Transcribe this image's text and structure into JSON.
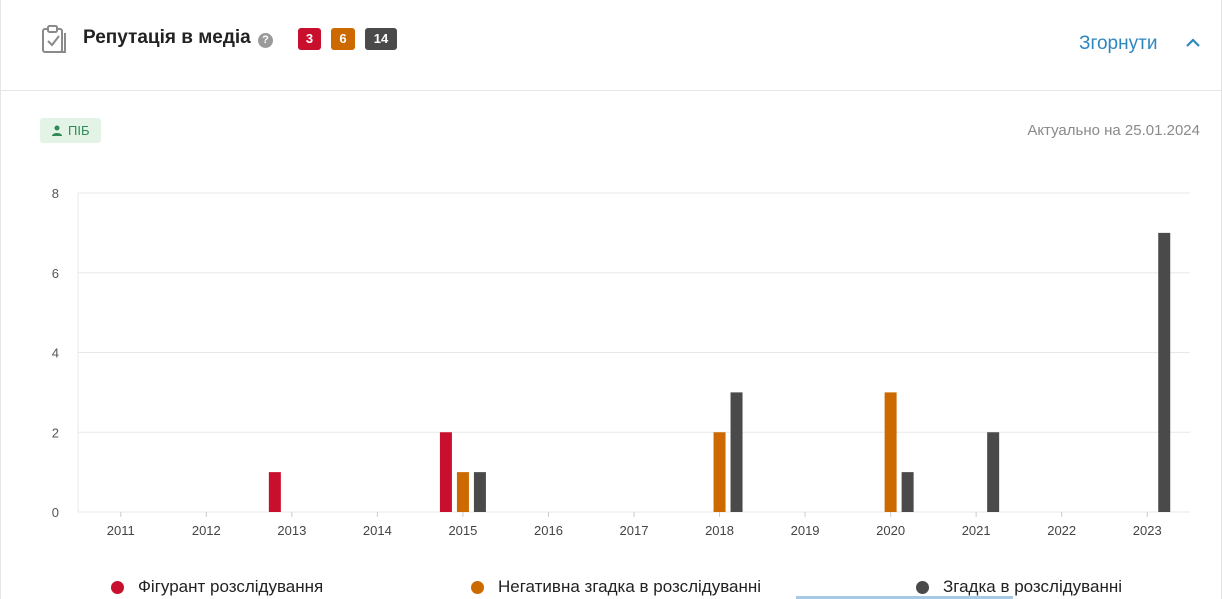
{
  "header": {
    "title": "Репутація в медіа",
    "help_icon": "question-circle-icon",
    "header_icon": "clipboard-check-icon",
    "badges": [
      {
        "label": "3",
        "color": "#c8102e"
      },
      {
        "label": "6",
        "color": "#cc6a00"
      },
      {
        "label": "14",
        "color": "#4a4a4a"
      }
    ],
    "collapse_label": "Згорнути",
    "collapse_icon": "chevron-up-icon"
  },
  "filter_tag": {
    "label": "ПІБ",
    "icon": "person-icon"
  },
  "actual_date": "Актуально на 25.01.2024",
  "chart_data": {
    "type": "bar",
    "categories": [
      "2011",
      "2012",
      "2013",
      "2014",
      "2015",
      "2016",
      "2017",
      "2018",
      "2019",
      "2020",
      "2021",
      "2022",
      "2023"
    ],
    "series": [
      {
        "name": "Фігурант розслідування",
        "color": "#c8102e",
        "values": [
          0,
          0,
          1,
          0,
          2,
          0,
          0,
          0,
          0,
          0,
          0,
          0,
          0
        ]
      },
      {
        "name": "Негативна згадка в розслідуванні",
        "color": "#cc6a00",
        "values": [
          0,
          0,
          0,
          0,
          1,
          0,
          0,
          2,
          0,
          3,
          0,
          0,
          0
        ]
      },
      {
        "name": "Згадка в розслідуванні",
        "color": "#4a4a4a",
        "values": [
          0,
          0,
          0,
          0,
          1,
          0,
          0,
          3,
          0,
          1,
          2,
          0,
          7
        ]
      }
    ],
    "yticks": [
      0,
      2,
      4,
      6,
      8
    ],
    "ylim": [
      0,
      8
    ],
    "grid": true,
    "legend_position": "bottom"
  },
  "colors": {
    "accent": "#2e86c1",
    "tag_bg": "#e3f4e7",
    "tag_text": "#2e8b57"
  }
}
